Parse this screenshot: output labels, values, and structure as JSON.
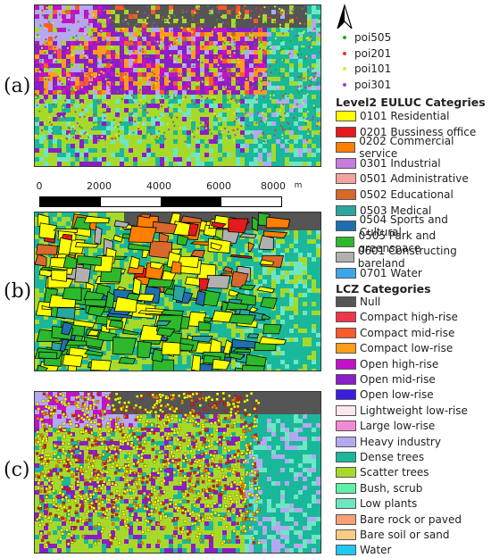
{
  "panels": [
    {
      "label": "(a)"
    },
    {
      "label": "(b)"
    },
    {
      "label": "(c)"
    }
  ],
  "scalebar": {
    "ticks": [
      "0",
      "2000",
      "4000",
      "6000",
      "8000"
    ],
    "unit": "m"
  },
  "north_arrow": {
    "icon": "north-arrow-icon"
  },
  "poi_legend": [
    {
      "label": "poi505",
      "color": "#22aa22"
    },
    {
      "label": "poi201",
      "color": "#ee3322"
    },
    {
      "label": "poi101",
      "color": "#e8e23a"
    },
    {
      "label": "poi301",
      "color": "#9a44cc"
    }
  ],
  "euluc_title": "Level2 EULUC Categries",
  "euluc": [
    {
      "label": "0101 Residential",
      "color": "#ffff00"
    },
    {
      "label": "0201 Bussiness office",
      "color": "#e41a1c"
    },
    {
      "label": "0202 Commercial service",
      "color": "#ff7f00"
    },
    {
      "label": "0301 Industrial",
      "color": "#c77bdc"
    },
    {
      "label": "0501 Administrative",
      "color": "#f4a3a3"
    },
    {
      "label": "0502 Educational",
      "color": "#d9682d"
    },
    {
      "label": "0503 Medical",
      "color": "#2aa6a0"
    },
    {
      "label": "0504 Sports and Cultural",
      "color": "#1f6fb0"
    },
    {
      "label": "0505 Park and greenspace",
      "color": "#2db82d"
    },
    {
      "label": "0601 Constructing bareland",
      "color": "#b0b0b0"
    },
    {
      "label": "0701 Water",
      "color": "#3ba6e8"
    }
  ],
  "lcz_title": "LCZ Categories",
  "lcz": [
    {
      "label": "Null",
      "color": "#555555"
    },
    {
      "label": "Compact high-rise",
      "color": "#f0344c"
    },
    {
      "label": "Compact mid-rise",
      "color": "#ff5a2a"
    },
    {
      "label": "Compact low-rise",
      "color": "#ff9c1a"
    },
    {
      "label": "Open high-rise",
      "color": "#c212c8"
    },
    {
      "label": "Open mid-rise",
      "color": "#8a1ec8"
    },
    {
      "label": "Open low-rise",
      "color": "#3a1ee0"
    },
    {
      "label": "Lightweight low-rise",
      "color": "#fbe6f2"
    },
    {
      "label": "Large low-rise",
      "color": "#f28ad8"
    },
    {
      "label": "Heavy industry",
      "color": "#b4a8f0"
    },
    {
      "label": "Dense trees",
      "color": "#1ab89a"
    },
    {
      "label": "Scatter trees",
      "color": "#a6d92a"
    },
    {
      "label": "Bush, scrub",
      "color": "#5ef0a6"
    },
    {
      "label": "Low plants",
      "color": "#6ee6c4"
    },
    {
      "label": "Bare rock or paved",
      "color": "#f6a078"
    },
    {
      "label": "Bare soil or sand",
      "color": "#fbcb86"
    },
    {
      "label": "Water",
      "color": "#1ec8f0"
    }
  ]
}
